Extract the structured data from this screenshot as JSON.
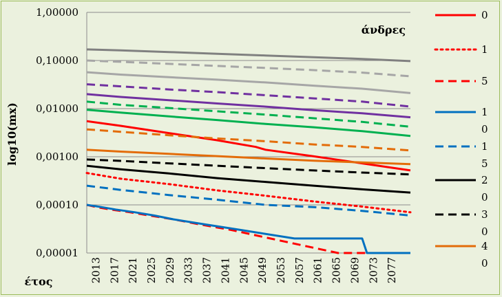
{
  "chart_data": {
    "type": "line",
    "annotation": "άνδρες",
    "xlabel": "έτος",
    "ylabel": "log10(mx)",
    "y_scale": "log",
    "ylim": [
      1e-05,
      1
    ],
    "y_ticks": [
      {
        "value": 1,
        "label": "1,00000"
      },
      {
        "value": 0.1,
        "label": "0,10000"
      },
      {
        "value": 0.01,
        "label": "0,01000"
      },
      {
        "value": 0.001,
        "label": "0,00100"
      },
      {
        "value": 0.0001,
        "label": "0,00010"
      },
      {
        "value": 1e-05,
        "label": "0,00001"
      }
    ],
    "xlim": [
      2013,
      2080
    ],
    "x_ticks": [
      "2013",
      "2017",
      "2021",
      "2025",
      "2029",
      "2033",
      "2037",
      "2041",
      "2045",
      "2049",
      "2053",
      "2057",
      "2061",
      "2065",
      "2069",
      "2073",
      "2077"
    ],
    "grid": "horizontal",
    "legend_position": "right",
    "series": [
      {
        "name": "0",
        "color": "#ff0000",
        "dash": "solid",
        "points": [
          [
            2013,
            0.0055
          ],
          [
            2020,
            0.0044
          ],
          [
            2030,
            0.0031
          ],
          [
            2040,
            0.0022
          ],
          [
            2048,
            0.0016
          ],
          [
            2050,
            0.0014
          ],
          [
            2060,
            0.00102
          ],
          [
            2070,
            0.00073
          ],
          [
            2080,
            0.00052
          ]
        ]
      },
      {
        "name": "1",
        "color": "#ff0000",
        "dash": "dot",
        "points": [
          [
            2013,
            0.00046
          ],
          [
            2020,
            0.00035
          ],
          [
            2030,
            0.00027
          ],
          [
            2040,
            0.0002
          ],
          [
            2050,
            0.000155
          ],
          [
            2060,
            0.000118
          ],
          [
            2070,
            9.2e-05
          ],
          [
            2080,
            7e-05
          ]
        ]
      },
      {
        "name": "5",
        "color": "#ff0000",
        "dash": "dash",
        "points": [
          [
            2013,
            0.0001
          ],
          [
            2015,
            9e-05
          ],
          [
            2018,
            8e-05
          ],
          [
            2022,
            7e-05
          ],
          [
            2026,
            6e-05
          ],
          [
            2031,
            5e-05
          ],
          [
            2036,
            4e-05
          ],
          [
            2043,
            3e-05
          ],
          [
            2051,
            2e-05
          ],
          [
            2065,
            1e-05
          ],
          [
            2080,
            1e-05
          ]
        ]
      },
      {
        "name": "1\n0",
        "color": "#0070c0",
        "dash": "solid",
        "points": [
          [
            2013,
            0.0001
          ],
          [
            2016,
            9e-05
          ],
          [
            2019,
            8e-05
          ],
          [
            2023,
            7e-05
          ],
          [
            2027,
            6e-05
          ],
          [
            2031,
            5e-05
          ],
          [
            2037,
            4e-05
          ],
          [
            2045,
            3e-05
          ],
          [
            2056,
            2e-05
          ],
          [
            2070,
            2e-05
          ],
          [
            2071,
            1e-05
          ],
          [
            2080,
            1e-05
          ]
        ]
      },
      {
        "name": "1\n5",
        "color": "#0070c0",
        "dash": "dash",
        "points": [
          [
            2013,
            0.00025
          ],
          [
            2020,
            0.000205
          ],
          [
            2030,
            0.00016
          ],
          [
            2040,
            0.000128
          ],
          [
            2050,
            0.0001
          ],
          [
            2060,
            9e-05
          ],
          [
            2070,
            7.5e-05
          ],
          [
            2080,
            6e-05
          ]
        ]
      },
      {
        "name": "2\n0",
        "color": "#000000",
        "dash": "solid",
        "points": [
          [
            2013,
            0.00065
          ],
          [
            2020,
            0.00055
          ],
          [
            2030,
            0.00045
          ],
          [
            2040,
            0.00036
          ],
          [
            2050,
            0.0003
          ],
          [
            2060,
            0.00025
          ],
          [
            2070,
            0.00021
          ],
          [
            2080,
            0.00018
          ]
        ]
      },
      {
        "name": "3\n0",
        "color": "#000000",
        "dash": "dash",
        "points": [
          [
            2013,
            0.00088
          ],
          [
            2020,
            0.00082
          ],
          [
            2030,
            0.00073
          ],
          [
            2040,
            0.00065
          ],
          [
            2050,
            0.00058
          ],
          [
            2060,
            0.00052
          ],
          [
            2070,
            0.00047
          ],
          [
            2080,
            0.00043
          ]
        ]
      },
      {
        "name": "4\n0",
        "color": "#e36c09",
        "dash": "solid",
        "points": [
          [
            2013,
            0.0014
          ],
          [
            2020,
            0.00128
          ],
          [
            2030,
            0.00115
          ],
          [
            2040,
            0.00103
          ],
          [
            2050,
            0.00092
          ],
          [
            2060,
            0.00083
          ],
          [
            2070,
            0.00076
          ],
          [
            2080,
            0.0007
          ]
        ]
      },
      {
        "name": "",
        "color": "#e36c09",
        "dash": "dash",
        "points": [
          [
            2013,
            0.0037
          ],
          [
            2020,
            0.0033
          ],
          [
            2030,
            0.0028
          ],
          [
            2040,
            0.0024
          ],
          [
            2050,
            0.0021
          ],
          [
            2060,
            0.0018
          ],
          [
            2070,
            0.0016
          ],
          [
            2080,
            0.00135
          ]
        ]
      },
      {
        "name": "",
        "color": "#00b050",
        "dash": "solid",
        "points": [
          [
            2013,
            0.0095
          ],
          [
            2020,
            0.0083
          ],
          [
            2030,
            0.0069
          ],
          [
            2040,
            0.0058
          ],
          [
            2050,
            0.0048
          ],
          [
            2060,
            0.0041
          ],
          [
            2070,
            0.0034
          ],
          [
            2080,
            0.0027
          ]
        ]
      },
      {
        "name": "",
        "color": "#00b050",
        "dash": "dash",
        "points": [
          [
            2013,
            0.014
          ],
          [
            2020,
            0.012
          ],
          [
            2030,
            0.0103
          ],
          [
            2040,
            0.0088
          ],
          [
            2050,
            0.0075
          ],
          [
            2060,
            0.0063
          ],
          [
            2070,
            0.0053
          ],
          [
            2080,
            0.0042
          ]
        ]
      },
      {
        "name": "",
        "color": "#7030a0",
        "dash": "solid",
        "points": [
          [
            2013,
            0.02
          ],
          [
            2020,
            0.0175
          ],
          [
            2030,
            0.015
          ],
          [
            2040,
            0.0128
          ],
          [
            2050,
            0.011
          ],
          [
            2060,
            0.0093
          ],
          [
            2070,
            0.008
          ],
          [
            2080,
            0.0066
          ]
        ]
      },
      {
        "name": "",
        "color": "#7030a0",
        "dash": "dash",
        "points": [
          [
            2013,
            0.032
          ],
          [
            2020,
            0.029
          ],
          [
            2030,
            0.025
          ],
          [
            2040,
            0.022
          ],
          [
            2050,
            0.019
          ],
          [
            2060,
            0.0163
          ],
          [
            2070,
            0.014
          ],
          [
            2080,
            0.011
          ]
        ]
      },
      {
        "name": "",
        "color": "#a6a6a6",
        "dash": "solid",
        "points": [
          [
            2013,
            0.057
          ],
          [
            2020,
            0.051
          ],
          [
            2030,
            0.045
          ],
          [
            2040,
            0.04
          ],
          [
            2050,
            0.035
          ],
          [
            2060,
            0.03
          ],
          [
            2070,
            0.026
          ],
          [
            2080,
            0.021
          ]
        ]
      },
      {
        "name": "",
        "color": "#a6a6a6",
        "dash": "dash",
        "points": [
          [
            2013,
            0.1
          ],
          [
            2020,
            0.094
          ],
          [
            2030,
            0.085
          ],
          [
            2040,
            0.077
          ],
          [
            2050,
            0.07
          ],
          [
            2060,
            0.063
          ],
          [
            2070,
            0.056
          ],
          [
            2080,
            0.047
          ]
        ]
      },
      {
        "name": "",
        "color": "#808080",
        "dash": "solid",
        "points": [
          [
            2013,
            0.17
          ],
          [
            2020,
            0.162
          ],
          [
            2030,
            0.15
          ],
          [
            2040,
            0.138
          ],
          [
            2050,
            0.127
          ],
          [
            2060,
            0.117
          ],
          [
            2070,
            0.108
          ],
          [
            2080,
            0.097
          ]
        ]
      }
    ]
  }
}
